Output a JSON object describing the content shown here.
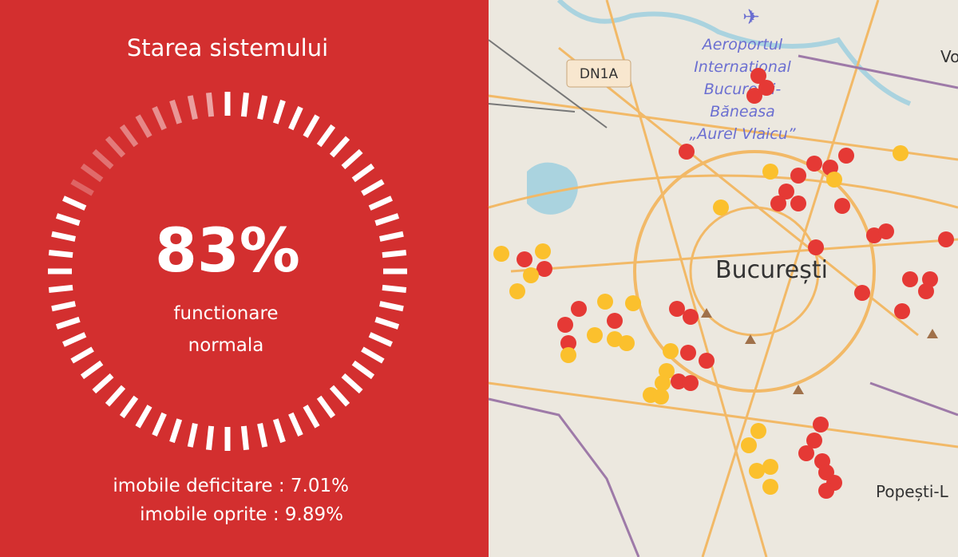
{
  "header": {
    "title": "Starea sistemului"
  },
  "gauge": {
    "value": 83,
    "label": "83%",
    "caption": [
      "functionare",
      "normala"
    ]
  },
  "stats": [
    "imobile deficitare : 7.01%",
    "imobile oprite : 9.89%"
  ],
  "map": {
    "road_label": "DN1A",
    "airport": [
      "Aeroportul",
      "Internațional",
      "București-",
      "Băneasa",
      "„Aurel Vlaicu”"
    ],
    "city": "București",
    "places": [
      "Popești-L",
      "Vo"
    ]
  }
}
